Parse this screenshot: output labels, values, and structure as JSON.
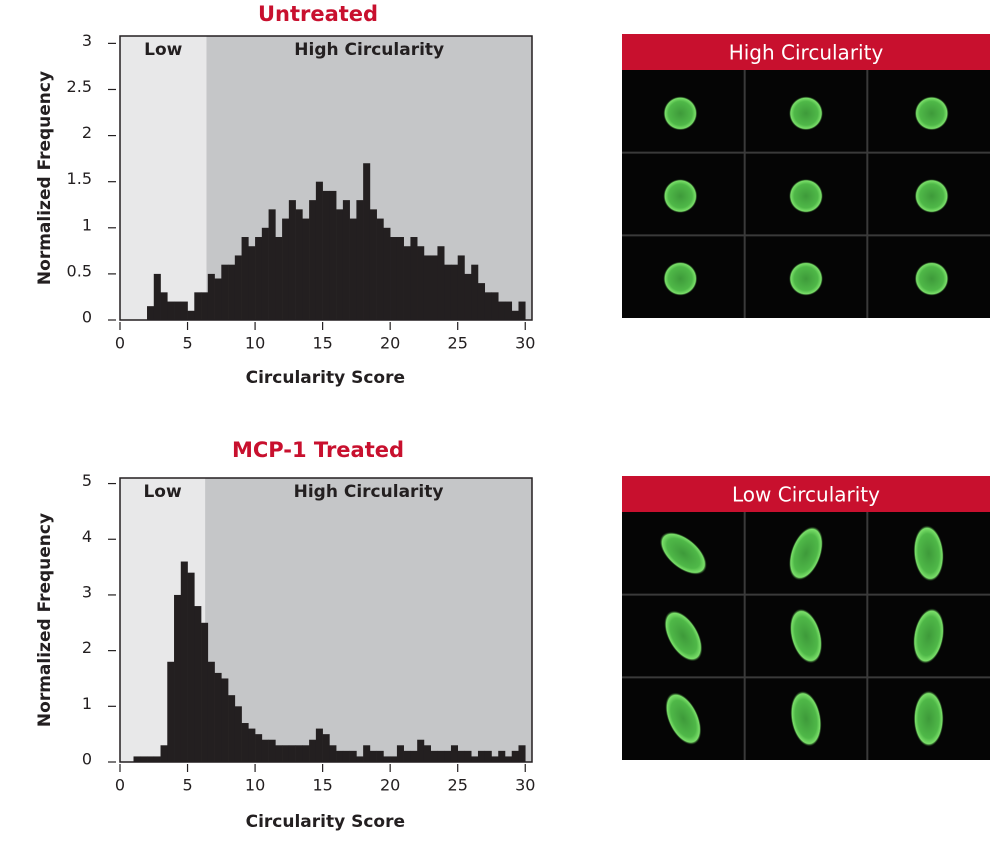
{
  "chart_data": [
    {
      "type": "histogram",
      "title": "Untreated",
      "xlabel": "Circularity Score",
      "ylabel": "Normalized Frequency",
      "bins": [
        0,
        0.5,
        1,
        1.5,
        2,
        2.5,
        3,
        3.5,
        4,
        4.5,
        5,
        5.5,
        6,
        6.5,
        7,
        7.5,
        8,
        8.5,
        9,
        9.5,
        10,
        10.5,
        11,
        11.5,
        12,
        12.5,
        13,
        13.5,
        14,
        14.5,
        15,
        15.5,
        16,
        16.5,
        17,
        17.5,
        18,
        18.5,
        19,
        19.5,
        20,
        20.5,
        21,
        21.5,
        22,
        22.5,
        23,
        23.5,
        24,
        24.5,
        25,
        25.5,
        26,
        26.5,
        27,
        27.5,
        28,
        28.5,
        29,
        29.5,
        30
      ],
      "values": [
        0,
        0,
        0,
        0,
        0.15,
        0.5,
        0.3,
        0.2,
        0.2,
        0.2,
        0.1,
        0.3,
        0.3,
        0.5,
        0.45,
        0.6,
        0.6,
        0.7,
        0.9,
        0.8,
        0.9,
        1.0,
        1.2,
        0.9,
        1.1,
        1.3,
        1.2,
        1.1,
        1.3,
        1.5,
        1.4,
        1.4,
        1.2,
        1.3,
        1.1,
        1.3,
        1.7,
        1.2,
        1.1,
        1.0,
        0.9,
        0.9,
        0.8,
        0.9,
        0.8,
        0.7,
        0.7,
        0.8,
        0.6,
        0.6,
        0.7,
        0.5,
        0.6,
        0.4,
        0.3,
        0.3,
        0.2,
        0.2,
        0.1,
        0.2
      ],
      "color": "#231f20",
      "regions": [
        {
          "label": "Low",
          "range": [
            0,
            6.4
          ],
          "color": "#e8e8e9"
        },
        {
          "label": "High Circularity",
          "range": [
            6.4,
            30.5
          ],
          "color": "#c5c6c8"
        }
      ],
      "xlim": [
        0,
        30.5
      ],
      "xticks": [
        0,
        5,
        10,
        15,
        20,
        25,
        30
      ],
      "ylim": [
        0,
        3.08
      ],
      "yticks": [
        0,
        0.5,
        1,
        1.5,
        2,
        2.5,
        3
      ]
    },
    {
      "type": "histogram",
      "title": "MCP-1 Treated",
      "xlabel": "Circularity Score",
      "ylabel": "Normalized Frequency",
      "bins": [
        0,
        0.5,
        1,
        1.5,
        2,
        2.5,
        3,
        3.5,
        4,
        4.5,
        5,
        5.5,
        6,
        6.5,
        7,
        7.5,
        8,
        8.5,
        9,
        9.5,
        10,
        10.5,
        11,
        11.5,
        12,
        12.5,
        13,
        13.5,
        14,
        14.5,
        15,
        15.5,
        16,
        16.5,
        17,
        17.5,
        18,
        18.5,
        19,
        19.5,
        20,
        20.5,
        21,
        21.5,
        22,
        22.5,
        23,
        23.5,
        24,
        24.5,
        25,
        25.5,
        26,
        26.5,
        27,
        27.5,
        28,
        28.5,
        29,
        29.5,
        30
      ],
      "values": [
        0,
        0,
        0.1,
        0.1,
        0.1,
        0.1,
        0.3,
        1.8,
        3.0,
        3.6,
        3.4,
        2.8,
        2.5,
        1.8,
        1.6,
        1.5,
        1.2,
        1.0,
        0.7,
        0.6,
        0.5,
        0.4,
        0.4,
        0.3,
        0.3,
        0.3,
        0.3,
        0.3,
        0.4,
        0.6,
        0.5,
        0.3,
        0.2,
        0.2,
        0.2,
        0.1,
        0.3,
        0.2,
        0.2,
        0.1,
        0.1,
        0.3,
        0.2,
        0.2,
        0.4,
        0.3,
        0.2,
        0.2,
        0.2,
        0.3,
        0.2,
        0.2,
        0.1,
        0.2,
        0.2,
        0.1,
        0.2,
        0.1,
        0.2,
        0.3
      ],
      "color": "#231f20",
      "regions": [
        {
          "label": "Low",
          "range": [
            0,
            6.3
          ],
          "color": "#e8e8e9"
        },
        {
          "label": "High Circularity",
          "range": [
            6.3,
            30.5
          ],
          "color": "#c5c6c8"
        }
      ],
      "xlim": [
        0,
        30.5
      ],
      "xticks": [
        0,
        5,
        10,
        15,
        20,
        25,
        30
      ],
      "ylim": [
        0,
        5.1
      ],
      "yticks": [
        0,
        1,
        2,
        3,
        4,
        5
      ]
    }
  ],
  "image_panels": [
    {
      "title": "High Circularity",
      "shape": "round"
    },
    {
      "title": "Low Circularity",
      "shape": "irregular"
    }
  ]
}
